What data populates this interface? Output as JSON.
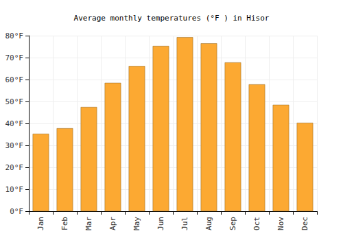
{
  "chart_data": {
    "type": "bar",
    "title": "Average monthly temperatures (°F ) in Hisor",
    "categories": [
      "Jan",
      "Feb",
      "Mar",
      "Apr",
      "May",
      "Jun",
      "Jul",
      "Aug",
      "Sep",
      "Oct",
      "Nov",
      "Dec"
    ],
    "values": [
      35.3,
      37.8,
      47.5,
      58.5,
      66.2,
      75.3,
      79.3,
      76.5,
      67.8,
      57.8,
      48.5,
      40.3
    ],
    "color": "#fca932",
    "ylim": [
      0,
      80
    ],
    "yticks": [
      {
        "value": 0,
        "label": "0°F"
      },
      {
        "value": 10,
        "label": "10°F"
      },
      {
        "value": 20,
        "label": "20°F"
      },
      {
        "value": 30,
        "label": "30°F"
      },
      {
        "value": 40,
        "label": "40°F"
      },
      {
        "value": 50,
        "label": "50°F"
      },
      {
        "value": 60,
        "label": "60°F"
      },
      {
        "value": 70,
        "label": "70°F"
      },
      {
        "value": 80,
        "label": "80°F"
      }
    ],
    "grid": true
  }
}
